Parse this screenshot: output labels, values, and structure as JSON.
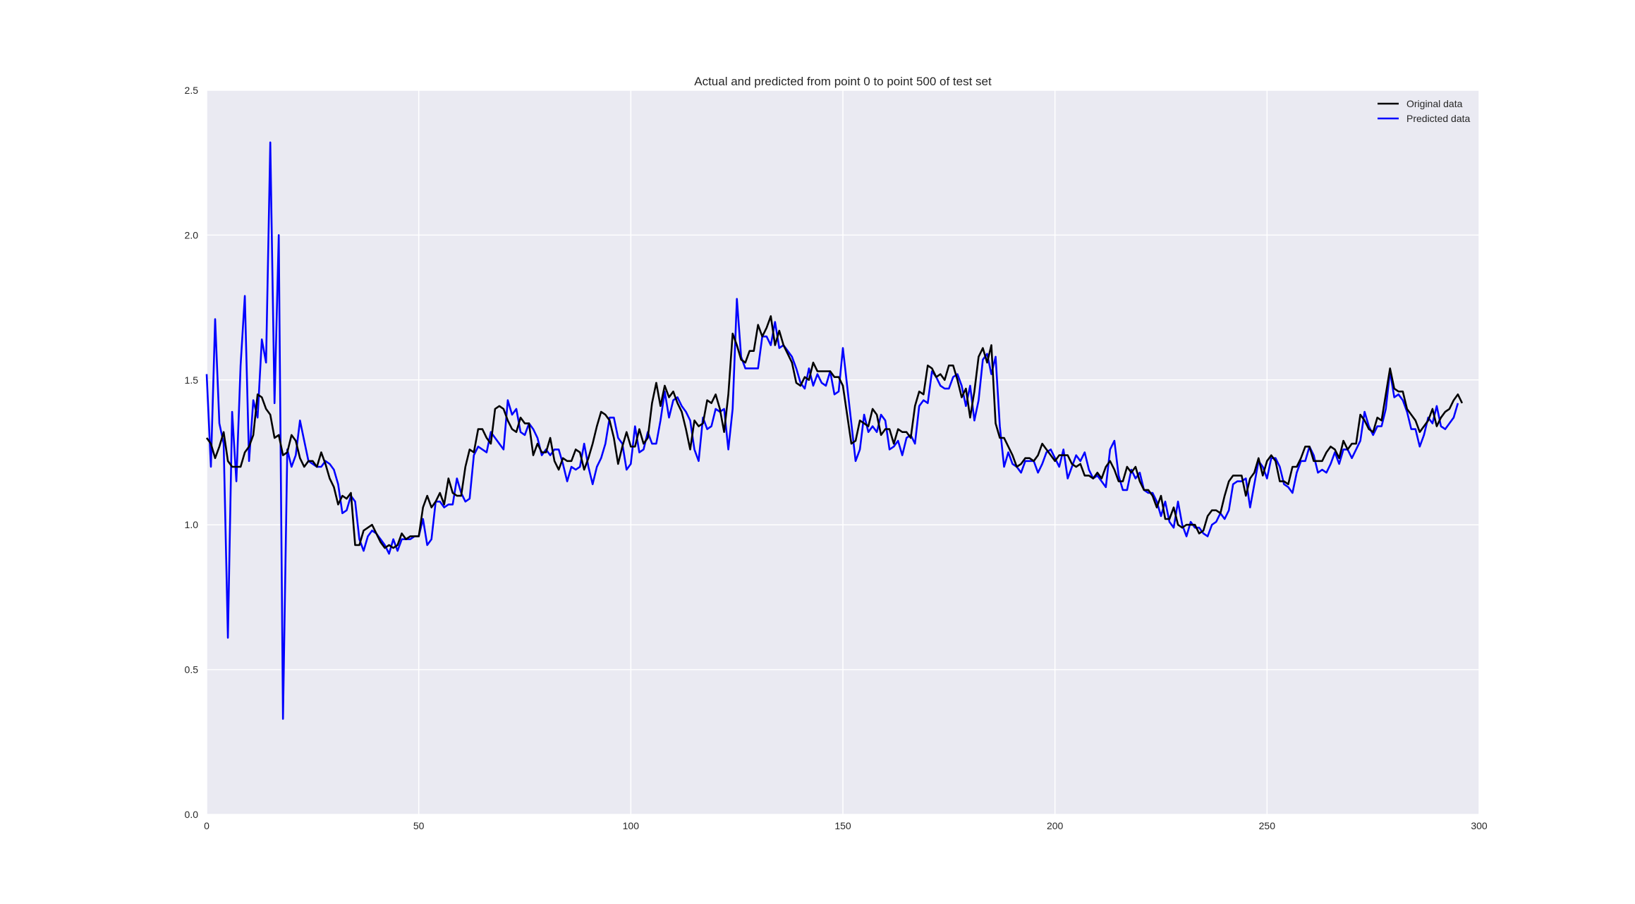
{
  "chart_data": {
    "type": "line",
    "title": "Actual and predicted from point 0 to point 500 of test set",
    "xlabel": "",
    "ylabel": "",
    "xlim": [
      0,
      300
    ],
    "ylim": [
      0,
      2.5
    ],
    "xticks": [
      "0",
      "50",
      "100",
      "150",
      "200",
      "250",
      "300"
    ],
    "yticks": [
      "0.0",
      "0.5",
      "1.0",
      "1.5",
      "2.0",
      "2.5"
    ],
    "grid": true,
    "legend": "top-right",
    "background": "#EAEAF2",
    "x_start": 0,
    "x_step": 1,
    "series": [
      {
        "name": "Original data",
        "color": "#000000",
        "values": [
          1.3,
          1.28,
          1.23,
          1.27,
          1.32,
          1.22,
          1.2,
          1.2,
          1.2,
          1.25,
          1.27,
          1.31,
          1.45,
          1.44,
          1.4,
          1.38,
          1.3,
          1.31,
          1.24,
          1.25,
          1.31,
          1.29,
          1.23,
          1.2,
          1.22,
          1.22,
          1.2,
          1.25,
          1.21,
          1.16,
          1.13,
          1.07,
          1.1,
          1.09,
          1.11,
          0.93,
          0.93,
          0.98,
          0.99,
          1.0,
          0.97,
          0.94,
          0.92,
          0.93,
          0.92,
          0.93,
          0.97,
          0.95,
          0.96,
          0.96,
          0.96,
          1.06,
          1.1,
          1.06,
          1.08,
          1.11,
          1.07,
          1.16,
          1.11,
          1.1,
          1.1,
          1.2,
          1.26,
          1.25,
          1.33,
          1.33,
          1.3,
          1.28,
          1.4,
          1.41,
          1.4,
          1.36,
          1.33,
          1.32,
          1.37,
          1.35,
          1.35,
          1.24,
          1.28,
          1.25,
          1.25,
          1.3,
          1.22,
          1.19,
          1.23,
          1.22,
          1.22,
          1.26,
          1.25,
          1.19,
          1.23,
          1.28,
          1.34,
          1.39,
          1.38,
          1.36,
          1.3,
          1.21,
          1.27,
          1.32,
          1.27,
          1.27,
          1.33,
          1.28,
          1.3,
          1.42,
          1.49,
          1.41,
          1.48,
          1.44,
          1.46,
          1.42,
          1.39,
          1.33,
          1.26,
          1.36,
          1.34,
          1.35,
          1.43,
          1.42,
          1.45,
          1.4,
          1.32,
          1.45,
          1.66,
          1.62,
          1.57,
          1.56,
          1.6,
          1.6,
          1.69,
          1.65,
          1.68,
          1.72,
          1.62,
          1.67,
          1.62,
          1.59,
          1.56,
          1.49,
          1.48,
          1.51,
          1.5,
          1.56,
          1.53,
          1.53,
          1.53,
          1.53,
          1.51,
          1.51,
          1.48,
          1.38,
          1.28,
          1.29,
          1.36,
          1.35,
          1.34,
          1.4,
          1.38,
          1.31,
          1.33,
          1.33,
          1.28,
          1.33,
          1.32,
          1.32,
          1.3,
          1.41,
          1.46,
          1.45,
          1.55,
          1.54,
          1.51,
          1.52,
          1.5,
          1.55,
          1.55,
          1.5,
          1.44,
          1.47,
          1.37,
          1.46,
          1.58,
          1.61,
          1.56,
          1.62,
          1.35,
          1.3,
          1.3,
          1.27,
          1.24,
          1.2,
          1.21,
          1.23,
          1.23,
          1.22,
          1.24,
          1.28,
          1.26,
          1.24,
          1.22,
          1.24,
          1.24,
          1.24,
          1.21,
          1.2,
          1.21,
          1.17,
          1.17,
          1.16,
          1.18,
          1.16,
          1.2,
          1.22,
          1.19,
          1.15,
          1.15,
          1.2,
          1.18,
          1.2,
          1.15,
          1.12,
          1.12,
          1.1,
          1.06,
          1.1,
          1.02,
          1.02,
          1.06,
          1.0,
          0.99,
          1.0,
          1.0,
          1.0,
          0.97,
          0.98,
          1.03,
          1.05,
          1.05,
          1.04,
          1.1,
          1.15,
          1.17,
          1.17,
          1.17,
          1.1,
          1.16,
          1.18,
          1.23,
          1.17,
          1.22,
          1.24,
          1.22,
          1.15,
          1.15,
          1.14,
          1.2,
          1.2,
          1.23,
          1.27,
          1.27,
          1.22,
          1.22,
          1.22,
          1.25,
          1.27,
          1.26,
          1.23,
          1.29,
          1.26,
          1.28,
          1.28,
          1.38,
          1.36,
          1.33,
          1.32,
          1.37,
          1.36,
          1.45,
          1.54,
          1.47,
          1.46,
          1.46,
          1.4,
          1.38,
          1.36,
          1.32,
          1.34,
          1.36,
          1.4,
          1.34,
          1.37,
          1.39,
          1.4,
          1.43,
          1.45,
          1.42
        ]
      },
      {
        "name": "Predicted data",
        "color": "#0000FF",
        "values": [
          1.52,
          1.2,
          1.71,
          1.35,
          1.28,
          0.61,
          1.39,
          1.15,
          1.55,
          1.79,
          1.22,
          1.43,
          1.37,
          1.64,
          1.56,
          2.32,
          1.42,
          2.0,
          0.33,
          1.26,
          1.2,
          1.24,
          1.36,
          1.29,
          1.22,
          1.21,
          1.2,
          1.2,
          1.22,
          1.21,
          1.19,
          1.14,
          1.04,
          1.05,
          1.1,
          1.08,
          0.95,
          0.91,
          0.96,
          0.98,
          0.97,
          0.95,
          0.93,
          0.9,
          0.95,
          0.91,
          0.95,
          0.95,
          0.95,
          0.96,
          0.96,
          1.02,
          0.93,
          0.95,
          1.08,
          1.08,
          1.06,
          1.07,
          1.07,
          1.16,
          1.11,
          1.08,
          1.09,
          1.24,
          1.27,
          1.26,
          1.25,
          1.32,
          1.3,
          1.28,
          1.26,
          1.43,
          1.38,
          1.4,
          1.32,
          1.31,
          1.35,
          1.33,
          1.3,
          1.24,
          1.26,
          1.24,
          1.26,
          1.26,
          1.21,
          1.15,
          1.2,
          1.19,
          1.2,
          1.28,
          1.2,
          1.14,
          1.2,
          1.23,
          1.28,
          1.37,
          1.37,
          1.3,
          1.28,
          1.19,
          1.21,
          1.34,
          1.25,
          1.26,
          1.32,
          1.28,
          1.28,
          1.36,
          1.46,
          1.37,
          1.43,
          1.44,
          1.41,
          1.39,
          1.36,
          1.26,
          1.22,
          1.37,
          1.33,
          1.34,
          1.4,
          1.39,
          1.4,
          1.26,
          1.4,
          1.78,
          1.58,
          1.54,
          1.54,
          1.54,
          1.54,
          1.65,
          1.65,
          1.62,
          1.7,
          1.61,
          1.62,
          1.6,
          1.58,
          1.54,
          1.49,
          1.47,
          1.54,
          1.48,
          1.52,
          1.49,
          1.48,
          1.53,
          1.45,
          1.46,
          1.61,
          1.48,
          1.35,
          1.22,
          1.26,
          1.38,
          1.32,
          1.34,
          1.32,
          1.38,
          1.36,
          1.26,
          1.27,
          1.29,
          1.24,
          1.3,
          1.31,
          1.28,
          1.41,
          1.43,
          1.42,
          1.53,
          1.51,
          1.48,
          1.47,
          1.47,
          1.51,
          1.52,
          1.48,
          1.41,
          1.48,
          1.36,
          1.43,
          1.57,
          1.59,
          1.52,
          1.58,
          1.34,
          1.2,
          1.25,
          1.21,
          1.2,
          1.18,
          1.22,
          1.22,
          1.22,
          1.18,
          1.21,
          1.25,
          1.26,
          1.23,
          1.2,
          1.26,
          1.16,
          1.2,
          1.24,
          1.22,
          1.25,
          1.19,
          1.16,
          1.17,
          1.15,
          1.13,
          1.26,
          1.29,
          1.17,
          1.12,
          1.12,
          1.19,
          1.16,
          1.18,
          1.12,
          1.11,
          1.11,
          1.08,
          1.03,
          1.08,
          1.01,
          0.99,
          1.08,
          1.0,
          0.96,
          1.01,
          0.99,
          0.99,
          0.97,
          0.96,
          1.0,
          1.01,
          1.04,
          1.02,
          1.05,
          1.14,
          1.15,
          1.15,
          1.16,
          1.06,
          1.14,
          1.22,
          1.2,
          1.16,
          1.23,
          1.23,
          1.2,
          1.14,
          1.13,
          1.11,
          1.18,
          1.22,
          1.22,
          1.27,
          1.24,
          1.18,
          1.19,
          1.18,
          1.21,
          1.25,
          1.21,
          1.26,
          1.26,
          1.23,
          1.26,
          1.29,
          1.39,
          1.34,
          1.31,
          1.34,
          1.34,
          1.4,
          1.53,
          1.44,
          1.45,
          1.43,
          1.39,
          1.33,
          1.33,
          1.27,
          1.31,
          1.37,
          1.35,
          1.41,
          1.34,
          1.33,
          1.35,
          1.37,
          1.42
        ]
      }
    ]
  }
}
